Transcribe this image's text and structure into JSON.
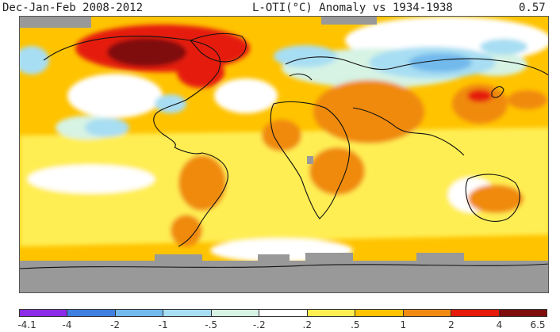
{
  "header": {
    "period": "Dec-Jan-Feb 2008-2012",
    "metric": "L-OTI(°C) Anomaly vs 1934-1938",
    "global_mean": "0.57"
  },
  "legend": {
    "ticks": [
      "-4.1",
      "-4",
      "-2",
      "-1",
      "-.5",
      "-.2",
      ".2",
      ".5",
      "1",
      "2",
      "4",
      "6.5"
    ],
    "colors": [
      "#8c2ce8",
      "#3e7fe0",
      "#72b9ec",
      "#a8def3",
      "#d6f3e4",
      "#ffffff",
      "#ffee52",
      "#ffc300",
      "#f08a10",
      "#e51a0a",
      "#7f0d0d"
    ]
  },
  "map": {
    "type": "global-anomaly-map",
    "projection": "equirectangular",
    "missing_data_color": "#999999"
  }
}
